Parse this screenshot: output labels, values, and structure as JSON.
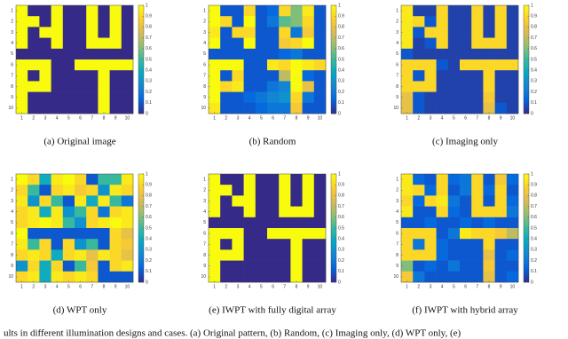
{
  "chart_data": [
    {
      "type": "heatmap",
      "caption": "(a)  Original image",
      "xticks": [
        1,
        2,
        3,
        4,
        5,
        6,
        7,
        8,
        9,
        10
      ],
      "yticks": [
        1,
        2,
        3,
        4,
        5,
        6,
        7,
        8,
        9,
        10
      ],
      "zlim": [
        0,
        1
      ],
      "colorbar_ticks": [
        0,
        0.1,
        0.2,
        0.3,
        0.4,
        0.5,
        0.6,
        0.7,
        0.8,
        0.9,
        1
      ],
      "values": [
        [
          1,
          0,
          0,
          1,
          0,
          0,
          1,
          0,
          1,
          0
        ],
        [
          1,
          1,
          0,
          1,
          0,
          0,
          1,
          0,
          1,
          0
        ],
        [
          1,
          0,
          1,
          1,
          0,
          0,
          1,
          0,
          1,
          0
        ],
        [
          1,
          0,
          0,
          1,
          0,
          0,
          1,
          1,
          1,
          0
        ],
        [
          0,
          0,
          0,
          0,
          0,
          0,
          0,
          0,
          0,
          0
        ],
        [
          1,
          1,
          1,
          0,
          0,
          1,
          1,
          1,
          1,
          1
        ],
        [
          1,
          0,
          1,
          0,
          0,
          0,
          0,
          1,
          0,
          0
        ],
        [
          1,
          1,
          1,
          0,
          0,
          0,
          0,
          1,
          0,
          0
        ],
        [
          1,
          0,
          0,
          0,
          0,
          0,
          0,
          1,
          0,
          0
        ],
        [
          1,
          0,
          0,
          0,
          0,
          0,
          0,
          1,
          0,
          0
        ]
      ]
    },
    {
      "type": "heatmap",
      "caption": "(b)  Random",
      "xticks": [
        1,
        2,
        3,
        4,
        5,
        6,
        7,
        8,
        9,
        10
      ],
      "yticks": [
        1,
        2,
        3,
        4,
        5,
        6,
        7,
        8,
        9,
        10
      ],
      "zlim": [
        0,
        1
      ],
      "colorbar_ticks": [
        0,
        0.1,
        0.2,
        0.3,
        0.4,
        0.5,
        0.6,
        0.7,
        0.8,
        0.9,
        1
      ],
      "values": [
        [
          1,
          0.1,
          0.1,
          0.9,
          0.1,
          0.15,
          0.9,
          0.6,
          0.95,
          0.1
        ],
        [
          1,
          0.9,
          0.1,
          1,
          0.1,
          0.2,
          0.55,
          0.6,
          0.9,
          0.1
        ],
        [
          0.95,
          0.1,
          0.9,
          0.9,
          0.1,
          0.1,
          0.9,
          0.2,
          0.85,
          0.1
        ],
        [
          1,
          0.1,
          0.1,
          1,
          0.1,
          0.1,
          0.85,
          0.9,
          1,
          0.1
        ],
        [
          0.1,
          0.1,
          0.1,
          0.1,
          0.1,
          0.1,
          0.15,
          0.2,
          0.1,
          0.1
        ],
        [
          1,
          1,
          1,
          0.1,
          0.1,
          0.95,
          0.9,
          1,
          0.95,
          0.9
        ],
        [
          1,
          0.1,
          0.9,
          0.1,
          0.1,
          0.1,
          0.7,
          1,
          0.15,
          0.1
        ],
        [
          1,
          0.9,
          0.95,
          0.1,
          0.1,
          0.2,
          0.25,
          1,
          0.8,
          0.1
        ],
        [
          1,
          0.1,
          0.1,
          0.15,
          0.2,
          0.25,
          0.3,
          0.9,
          0.2,
          0.1
        ],
        [
          0.95,
          0.1,
          0.1,
          0.1,
          0.15,
          0.2,
          0.2,
          0.85,
          0.1,
          0.1
        ]
      ]
    },
    {
      "type": "heatmap",
      "caption": "(c)  Imaging only",
      "xticks": [
        1,
        2,
        3,
        4,
        5,
        6,
        7,
        8,
        9,
        10
      ],
      "yticks": [
        1,
        2,
        3,
        4,
        5,
        6,
        7,
        8,
        9,
        10
      ],
      "zlim": [
        0,
        1
      ],
      "colorbar_ticks": [
        0,
        0.1,
        0.2,
        0.3,
        0.4,
        0.5,
        0.6,
        0.7,
        0.8,
        0.9,
        1
      ],
      "values": [
        [
          0.95,
          0.05,
          0.05,
          0.9,
          0.05,
          0.05,
          0.9,
          0.05,
          0.9,
          0.05
        ],
        [
          0.95,
          0.9,
          0.1,
          0.9,
          0.05,
          0.05,
          0.9,
          0.05,
          0.9,
          0.05
        ],
        [
          0.95,
          0.1,
          0.9,
          0.9,
          0.05,
          0.05,
          0.9,
          0.05,
          0.9,
          0.05
        ],
        [
          0.95,
          0.05,
          0.1,
          0.9,
          0.05,
          0.05,
          0.9,
          0.9,
          0.9,
          0.05
        ],
        [
          0.1,
          0.05,
          0.05,
          0.05,
          0.05,
          0.05,
          0.05,
          0.05,
          0.05,
          0.05
        ],
        [
          0.9,
          0.9,
          0.9,
          0.1,
          0.05,
          0.9,
          0.9,
          0.9,
          0.9,
          0.9
        ],
        [
          0.9,
          0.1,
          0.9,
          0.05,
          0.05,
          0.05,
          0.05,
          0.9,
          0.05,
          0.05
        ],
        [
          0.9,
          0.9,
          0.9,
          0.05,
          0.05,
          0.05,
          0.05,
          0.9,
          0.05,
          0.05
        ],
        [
          0.8,
          0.1,
          0.05,
          0.05,
          0.05,
          0.05,
          0.05,
          0.85,
          0.05,
          0.05
        ],
        [
          0.8,
          0.1,
          0.05,
          0.05,
          0.05,
          0.05,
          0.05,
          0.8,
          0.1,
          0.05
        ]
      ]
    },
    {
      "type": "heatmap",
      "caption": "(d)  WPT only",
      "xticks": [
        1,
        2,
        3,
        4,
        5,
        6,
        7,
        8,
        9,
        10
      ],
      "yticks": [
        1,
        2,
        3,
        4,
        5,
        6,
        7,
        8,
        9,
        10
      ],
      "zlim": [
        0,
        1
      ],
      "colorbar_ticks": [
        0,
        0.1,
        0.2,
        0.3,
        0.4,
        0.5,
        0.6,
        0.7,
        0.8,
        0.9,
        1
      ],
      "values": [
        [
          1,
          0.9,
          0.4,
          0.95,
          1,
          0.9,
          0.1,
          0.5,
          0.5,
          0.95
        ],
        [
          0.9,
          0.5,
          0.1,
          0.9,
          0.95,
          0.85,
          0.9,
          0.3,
          0.95,
          0.9
        ],
        [
          0.95,
          0.3,
          0.9,
          0.5,
          0.1,
          0.95,
          0.4,
          0.95,
          0.5,
          0.2
        ],
        [
          0.9,
          0.95,
          0.4,
          0.95,
          0.3,
          0.5,
          0.9,
          0.2,
          0.9,
          0.95
        ],
        [
          0.9,
          0.95,
          1,
          0.95,
          0.5,
          0.3,
          0.9,
          0.95,
          1,
          0.95
        ],
        [
          1,
          0.1,
          0.1,
          0.1,
          0.1,
          0.1,
          0.1,
          0.1,
          0.9,
          0.8
        ],
        [
          0.95,
          0.5,
          0.9,
          0.1,
          0.9,
          0.3,
          0.5,
          0.1,
          0.9,
          0.85
        ],
        [
          0.9,
          0.95,
          0.9,
          0.4,
          0.9,
          0.95,
          0.8,
          0.95,
          0.9,
          0.8
        ],
        [
          0.3,
          0.9,
          0.4,
          0.9,
          0.1,
          0.5,
          0.85,
          0.1,
          0.9,
          0.95
        ],
        [
          0.9,
          0.95,
          0.4,
          0.95,
          0.9,
          0.95,
          0.9,
          0.1,
          0.1,
          0.1
        ]
      ]
    },
    {
      "type": "heatmap",
      "caption": "(e)  IWPT with fully digital array",
      "xticks": [
        1,
        2,
        3,
        4,
        5,
        6,
        7,
        8,
        9,
        10
      ],
      "yticks": [
        1,
        2,
        3,
        4,
        5,
        6,
        7,
        8,
        9,
        10
      ],
      "zlim": [
        0,
        1
      ],
      "colorbar_ticks": [
        0,
        0.1,
        0.2,
        0.3,
        0.4,
        0.5,
        0.6,
        0.7,
        0.8,
        0.9,
        1
      ],
      "values": [
        [
          1,
          0,
          0,
          1,
          0,
          0,
          1,
          0,
          1,
          0
        ],
        [
          1,
          1,
          0,
          1,
          0,
          0,
          1,
          0,
          1,
          0
        ],
        [
          1,
          0,
          1,
          1,
          0,
          0,
          1,
          0,
          1,
          0
        ],
        [
          1,
          0,
          0,
          1,
          0,
          0,
          1,
          1,
          1,
          0
        ],
        [
          0,
          0,
          0,
          0,
          0,
          0,
          0,
          0,
          0,
          0
        ],
        [
          1,
          1,
          1,
          0,
          0,
          1,
          1,
          1,
          1,
          1
        ],
        [
          1,
          0,
          1,
          0,
          0,
          0,
          0,
          1,
          0,
          0
        ],
        [
          1,
          1,
          1,
          0,
          0,
          0,
          0,
          1,
          0,
          0
        ],
        [
          1,
          0,
          0,
          0,
          0,
          0,
          0,
          1,
          0,
          0
        ],
        [
          1,
          0,
          0,
          0,
          0,
          0,
          0,
          1,
          0,
          0
        ]
      ]
    },
    {
      "type": "heatmap",
      "caption": "(f)  IWPT with hybrid array",
      "xticks": [
        1,
        2,
        3,
        4,
        5,
        6,
        7,
        8,
        9,
        10
      ],
      "yticks": [
        1,
        2,
        3,
        4,
        5,
        6,
        7,
        8,
        9,
        10
      ],
      "zlim": [
        0,
        1
      ],
      "colorbar_ticks": [
        0,
        0.1,
        0.2,
        0.3,
        0.4,
        0.5,
        0.6,
        0.7,
        0.8,
        0.9,
        1
      ],
      "values": [
        [
          0.95,
          0.15,
          0.1,
          0.9,
          0.15,
          0.2,
          0.9,
          0.1,
          0.85,
          0.15
        ],
        [
          0.95,
          0.9,
          0.15,
          0.9,
          0.1,
          0.2,
          0.9,
          0.15,
          0.9,
          0.1
        ],
        [
          0.9,
          0.15,
          0.9,
          0.95,
          0.2,
          0.1,
          0.9,
          0.1,
          0.9,
          0.15
        ],
        [
          0.95,
          0.1,
          0.1,
          0.9,
          0.15,
          0.1,
          0.9,
          0.9,
          0.9,
          0.2
        ],
        [
          0.1,
          0.1,
          0.15,
          0.1,
          0.1,
          0.15,
          0.1,
          0.15,
          0.1,
          0.1
        ],
        [
          0.9,
          0.9,
          0.9,
          0.1,
          0.2,
          0.95,
          0.9,
          0.9,
          0.85,
          0.7
        ],
        [
          0.9,
          0.2,
          0.9,
          0.15,
          0.1,
          0.1,
          0.1,
          0.9,
          0.1,
          0.1
        ],
        [
          0.9,
          0.9,
          0.9,
          0.15,
          0.1,
          0.1,
          0.1,
          0.8,
          0.1,
          0.15
        ],
        [
          0.6,
          0.1,
          0.15,
          0.1,
          0.2,
          0.1,
          0.1,
          0.85,
          0.1,
          0.1
        ],
        [
          0.85,
          0.2,
          0.1,
          0.1,
          0.1,
          0.1,
          0.1,
          0.8,
          0.1,
          0.15
        ]
      ]
    }
  ],
  "colormap": [
    "#352a87",
    "#0363e1",
    "#1485d4",
    "#06a7c6",
    "#38b99e",
    "#92bf73",
    "#d9ba56",
    "#fcce2e",
    "#f9fb0e"
  ],
  "figure_caption": "ults in different illumination designs and cases. (a) Original pattern, (b) Random, (c) Imaging only, (d) WPT only, (e)"
}
